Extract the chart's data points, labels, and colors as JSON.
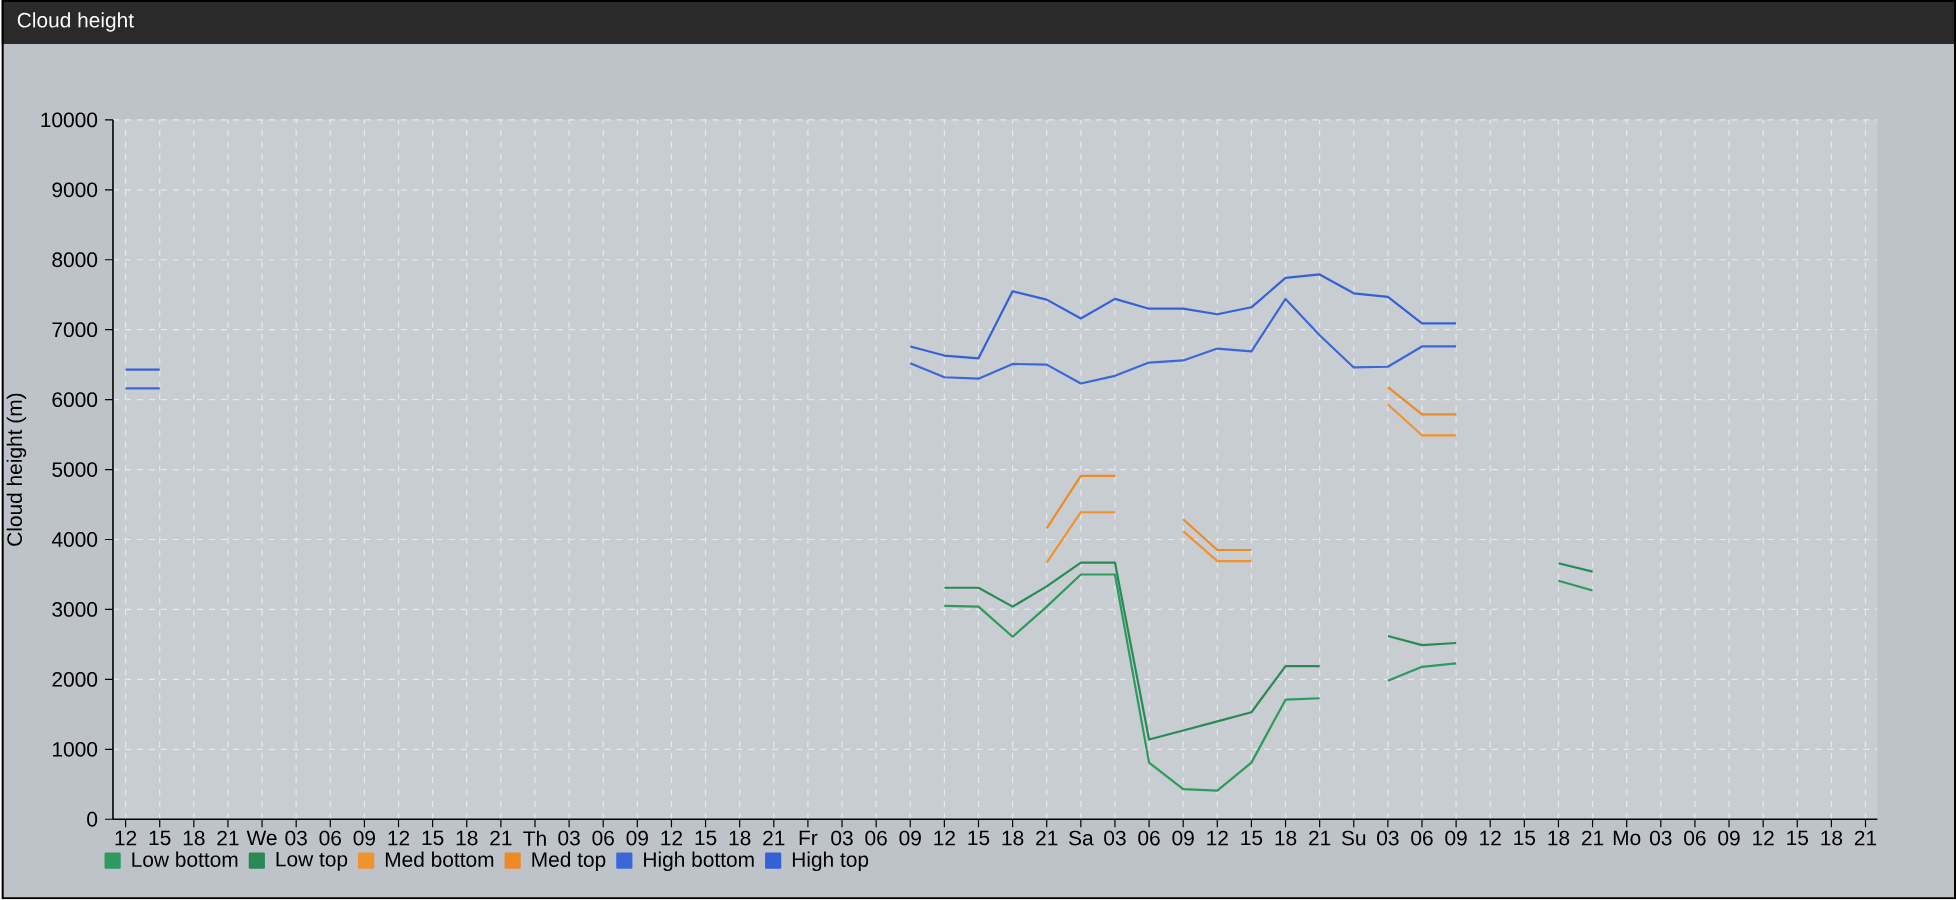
{
  "chart_data": {
    "type": "line",
    "title": "Cloud height",
    "ylabel": "Cloud height (m)",
    "categories": [
      "12",
      "15",
      "18",
      "21",
      "We",
      "03",
      "06",
      "09",
      "12",
      "15",
      "18",
      "21",
      "Th",
      "03",
      "06",
      "09",
      "12",
      "15",
      "18",
      "21",
      "Fr",
      "03",
      "06",
      "09",
      "12",
      "15",
      "18",
      "21",
      "Sa",
      "03",
      "06",
      "09",
      "12",
      "15",
      "18",
      "21",
      "Su",
      "03",
      "06",
      "09",
      "12",
      "15",
      "18",
      "21",
      "Mo",
      "03",
      "06",
      "09",
      "12",
      "15",
      "18",
      "21"
    ],
    "ylim": [
      0,
      10000
    ],
    "yticks": [
      0,
      1000,
      2000,
      3000,
      4000,
      5000,
      6000,
      7000,
      8000,
      9000,
      10000
    ],
    "grid": true,
    "legend": "bottom left",
    "series": [
      {
        "name": "Low bottom",
        "color": "#2e9a5e",
        "values": [
          null,
          null,
          null,
          null,
          null,
          null,
          null,
          null,
          null,
          null,
          null,
          null,
          null,
          null,
          null,
          null,
          null,
          null,
          null,
          null,
          null,
          null,
          null,
          null,
          3050,
          3040,
          2610,
          3040,
          3500,
          3500,
          810,
          430,
          410,
          810,
          1710,
          1730,
          null,
          1980,
          2180,
          2230,
          null,
          null,
          3410,
          3270,
          null,
          null,
          null,
          null,
          null,
          null,
          null,
          null
        ]
      },
      {
        "name": "Low top",
        "color": "#2a8a55",
        "values": [
          null,
          null,
          null,
          null,
          null,
          null,
          null,
          null,
          null,
          null,
          null,
          null,
          null,
          null,
          null,
          null,
          null,
          null,
          null,
          null,
          null,
          null,
          null,
          null,
          3310,
          3310,
          3040,
          3330,
          3670,
          3670,
          1140,
          1270,
          1400,
          1530,
          2190,
          2190,
          null,
          2620,
          2490,
          2520,
          null,
          null,
          3660,
          3540,
          null,
          null,
          null,
          null,
          null,
          null,
          null,
          null
        ]
      },
      {
        "name": "Med bottom",
        "color": "#f0922e",
        "values": [
          null,
          null,
          null,
          null,
          null,
          null,
          null,
          null,
          null,
          null,
          null,
          null,
          null,
          null,
          null,
          null,
          null,
          null,
          null,
          null,
          null,
          null,
          null,
          null,
          null,
          null,
          null,
          3670,
          4390,
          4390,
          null,
          4120,
          3690,
          3690,
          null,
          null,
          null,
          5930,
          5490,
          5490,
          null,
          null,
          null,
          null,
          null,
          null,
          null,
          null,
          null,
          null,
          null,
          null
        ]
      },
      {
        "name": "Med top",
        "color": "#ee8a26",
        "values": [
          null,
          null,
          null,
          null,
          null,
          null,
          null,
          null,
          null,
          null,
          null,
          null,
          null,
          null,
          null,
          null,
          null,
          null,
          null,
          null,
          null,
          null,
          null,
          null,
          null,
          null,
          null,
          4160,
          4910,
          4910,
          null,
          4290,
          3850,
          3850,
          null,
          null,
          null,
          6180,
          5790,
          5790,
          null,
          null,
          null,
          null,
          null,
          null,
          null,
          null,
          null,
          null,
          null,
          null
        ]
      },
      {
        "name": "High bottom",
        "color": "#3a68d8",
        "values": [
          6160,
          6160,
          null,
          null,
          null,
          null,
          null,
          null,
          null,
          null,
          null,
          null,
          null,
          null,
          null,
          null,
          null,
          null,
          null,
          null,
          null,
          null,
          null,
          6520,
          6320,
          6300,
          6510,
          6500,
          6230,
          6340,
          6530,
          6560,
          6730,
          6690,
          7440,
          6920,
          6460,
          6470,
          6760,
          6760,
          null,
          null,
          null,
          null,
          null,
          null,
          null,
          null,
          null,
          null,
          null,
          null
        ]
      },
      {
        "name": "High top",
        "color": "#3462d6",
        "values": [
          6430,
          6430,
          null,
          null,
          null,
          null,
          null,
          null,
          null,
          null,
          null,
          null,
          null,
          null,
          null,
          null,
          null,
          null,
          null,
          null,
          null,
          null,
          null,
          6760,
          6630,
          6590,
          7550,
          7430,
          7160,
          7440,
          7300,
          7300,
          7220,
          7320,
          7740,
          7790,
          7520,
          7470,
          7090,
          7090,
          null,
          null,
          null,
          null,
          null,
          null,
          null,
          null,
          null,
          null,
          null,
          null
        ]
      }
    ]
  }
}
